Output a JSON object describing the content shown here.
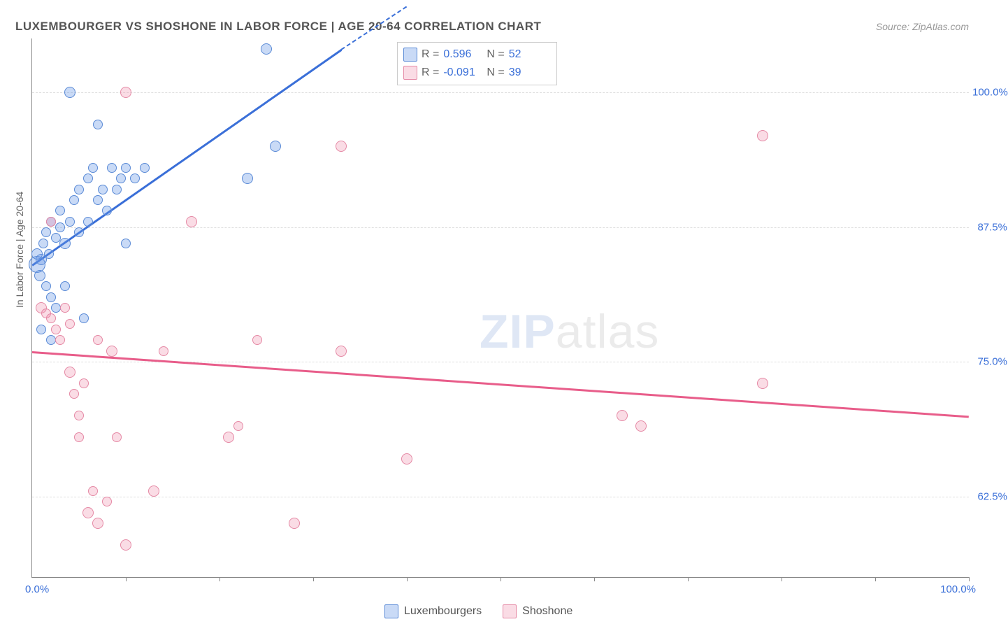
{
  "title": "LUXEMBOURGER VS SHOSHONE IN LABOR FORCE | AGE 20-64 CORRELATION CHART",
  "source": "Source: ZipAtlas.com",
  "ylabel": "In Labor Force | Age 20-64",
  "watermark_zip": "ZIP",
  "watermark_atlas": "atlas",
  "xaxis": {
    "min_label": "0.0%",
    "max_label": "100.0%"
  },
  "chart": {
    "type": "scatter",
    "xlim": [
      0,
      100
    ],
    "ylim": [
      55,
      105
    ],
    "ygrid": [
      {
        "y": 62.5,
        "label": "62.5%"
      },
      {
        "y": 75.0,
        "label": "75.0%"
      },
      {
        "y": 87.5,
        "label": "87.5%"
      },
      {
        "y": 100.0,
        "label": "100.0%"
      }
    ],
    "xticks": [
      10,
      20,
      30,
      40,
      50,
      60,
      70,
      80,
      90,
      100
    ],
    "background_color": "#ffffff",
    "grid_color": "#dddddd",
    "axis_color": "#888888"
  },
  "series": [
    {
      "name": "Luxembourgers",
      "color_fill": "rgba(100,150,230,0.35)",
      "color_stroke": "#5a8ad6",
      "color_line": "#3a6fd8",
      "r_label": "R =",
      "r_value": "0.596",
      "n_label": "N =",
      "n_value": "52",
      "trend": {
        "x1": 0,
        "y1": 84,
        "x2": 33,
        "y2": 104
      },
      "trend_dash": {
        "x1": 33,
        "y1": 104,
        "x2": 40,
        "y2": 108
      },
      "points": [
        {
          "x": 0.5,
          "y": 84,
          "r": 12
        },
        {
          "x": 0.5,
          "y": 85,
          "r": 8
        },
        {
          "x": 0.8,
          "y": 83,
          "r": 8
        },
        {
          "x": 1,
          "y": 84.5,
          "r": 8
        },
        {
          "x": 1.2,
          "y": 86,
          "r": 7
        },
        {
          "x": 1.5,
          "y": 87,
          "r": 7
        },
        {
          "x": 1.8,
          "y": 85,
          "r": 7
        },
        {
          "x": 2,
          "y": 88,
          "r": 7
        },
        {
          "x": 2.5,
          "y": 86.5,
          "r": 7
        },
        {
          "x": 3,
          "y": 87.5,
          "r": 7
        },
        {
          "x": 3,
          "y": 89,
          "r": 7
        },
        {
          "x": 3.5,
          "y": 86,
          "r": 8
        },
        {
          "x": 4,
          "y": 88,
          "r": 7
        },
        {
          "x": 4,
          "y": 100,
          "r": 8
        },
        {
          "x": 4.5,
          "y": 90,
          "r": 7
        },
        {
          "x": 5,
          "y": 87,
          "r": 7
        },
        {
          "x": 5,
          "y": 91,
          "r": 7
        },
        {
          "x": 5.5,
          "y": 79,
          "r": 7
        },
        {
          "x": 6,
          "y": 92,
          "r": 7
        },
        {
          "x": 6,
          "y": 88,
          "r": 7
        },
        {
          "x": 6.5,
          "y": 93,
          "r": 7
        },
        {
          "x": 7,
          "y": 90,
          "r": 7
        },
        {
          "x": 7,
          "y": 97,
          "r": 7
        },
        {
          "x": 7.5,
          "y": 91,
          "r": 7
        },
        {
          "x": 8,
          "y": 89,
          "r": 7
        },
        {
          "x": 8.5,
          "y": 93,
          "r": 7
        },
        {
          "x": 9,
          "y": 91,
          "r": 7
        },
        {
          "x": 9.5,
          "y": 92,
          "r": 7
        },
        {
          "x": 10,
          "y": 86,
          "r": 7
        },
        {
          "x": 10,
          "y": 93,
          "r": 7
        },
        {
          "x": 11,
          "y": 92,
          "r": 7
        },
        {
          "x": 12,
          "y": 93,
          "r": 7
        },
        {
          "x": 1.5,
          "y": 82,
          "r": 7
        },
        {
          "x": 2,
          "y": 81,
          "r": 7
        },
        {
          "x": 2.5,
          "y": 80,
          "r": 7
        },
        {
          "x": 3.5,
          "y": 82,
          "r": 7
        },
        {
          "x": 1,
          "y": 78,
          "r": 7
        },
        {
          "x": 2,
          "y": 77,
          "r": 7
        },
        {
          "x": 23,
          "y": 92,
          "r": 8
        },
        {
          "x": 25,
          "y": 104,
          "r": 8
        },
        {
          "x": 26,
          "y": 95,
          "r": 8
        }
      ]
    },
    {
      "name": "Shoshone",
      "color_fill": "rgba(240,140,170,0.30)",
      "color_stroke": "#e589a5",
      "color_line": "#e85d8a",
      "r_label": "R =",
      "r_value": "-0.091",
      "n_label": "N =",
      "n_value": "39",
      "trend": {
        "x1": 0,
        "y1": 76,
        "x2": 100,
        "y2": 70
      },
      "points": [
        {
          "x": 1,
          "y": 80,
          "r": 8
        },
        {
          "x": 1.5,
          "y": 79.5,
          "r": 7
        },
        {
          "x": 2,
          "y": 79,
          "r": 7
        },
        {
          "x": 2,
          "y": 88,
          "r": 7
        },
        {
          "x": 2.5,
          "y": 78,
          "r": 7
        },
        {
          "x": 3,
          "y": 77,
          "r": 7
        },
        {
          "x": 3.5,
          "y": 80,
          "r": 7
        },
        {
          "x": 4,
          "y": 74,
          "r": 8
        },
        {
          "x": 4,
          "y": 78.5,
          "r": 7
        },
        {
          "x": 4.5,
          "y": 72,
          "r": 7
        },
        {
          "x": 5,
          "y": 70,
          "r": 7
        },
        {
          "x": 5.5,
          "y": 73,
          "r": 7
        },
        {
          "x": 5,
          "y": 68,
          "r": 7
        },
        {
          "x": 6,
          "y": 61,
          "r": 8
        },
        {
          "x": 6.5,
          "y": 63,
          "r": 7
        },
        {
          "x": 7,
          "y": 60,
          "r": 8
        },
        {
          "x": 7,
          "y": 77,
          "r": 7
        },
        {
          "x": 8,
          "y": 62,
          "r": 7
        },
        {
          "x": 8.5,
          "y": 76,
          "r": 8
        },
        {
          "x": 9,
          "y": 68,
          "r": 7
        },
        {
          "x": 10,
          "y": 100,
          "r": 8
        },
        {
          "x": 10,
          "y": 58,
          "r": 8
        },
        {
          "x": 13,
          "y": 63,
          "r": 8
        },
        {
          "x": 14,
          "y": 76,
          "r": 7
        },
        {
          "x": 17,
          "y": 88,
          "r": 8
        },
        {
          "x": 21,
          "y": 68,
          "r": 8
        },
        {
          "x": 22,
          "y": 69,
          "r": 7
        },
        {
          "x": 24,
          "y": 77,
          "r": 7
        },
        {
          "x": 28,
          "y": 60,
          "r": 8
        },
        {
          "x": 33,
          "y": 95,
          "r": 8
        },
        {
          "x": 33,
          "y": 76,
          "r": 8
        },
        {
          "x": 40,
          "y": 66,
          "r": 8
        },
        {
          "x": 63,
          "y": 70,
          "r": 8
        },
        {
          "x": 65,
          "y": 69,
          "r": 8
        },
        {
          "x": 78,
          "y": 73,
          "r": 8
        },
        {
          "x": 78,
          "y": 96,
          "r": 8
        }
      ]
    }
  ],
  "legend": {
    "series1_label": "Luxembourgers",
    "series2_label": "Shoshone"
  }
}
